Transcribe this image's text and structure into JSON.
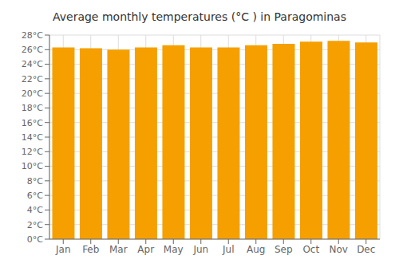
{
  "chart_data": {
    "type": "bar",
    "title": "Average monthly temperatures (°C ) in Paragominas",
    "categories": [
      "Jan",
      "Feb",
      "Mar",
      "Apr",
      "May",
      "Jun",
      "Jul",
      "Aug",
      "Sep",
      "Oct",
      "Nov",
      "Dec"
    ],
    "values": [
      26.3,
      26.2,
      26.0,
      26.3,
      26.6,
      26.3,
      26.3,
      26.6,
      26.8,
      27.1,
      27.2,
      27.0
    ],
    "color": "#F5A000",
    "ylim": [
      0,
      28
    ],
    "yticks": [
      {
        "value": 0,
        "label": "0°C"
      },
      {
        "value": 2,
        "label": "2°C"
      },
      {
        "value": 4,
        "label": "4°C"
      },
      {
        "value": 6,
        "label": "6°C"
      },
      {
        "value": 8,
        "label": "8°C"
      },
      {
        "value": 10,
        "label": "10°C"
      },
      {
        "value": 12,
        "label": "12°C"
      },
      {
        "value": 14,
        "label": "14°C"
      },
      {
        "value": 16,
        "label": "16°C"
      },
      {
        "value": 18,
        "label": "18°C"
      },
      {
        "value": 20,
        "label": "20°C"
      },
      {
        "value": 22,
        "label": "22°C"
      },
      {
        "value": 24,
        "label": "24°C"
      },
      {
        "value": 26,
        "label": "26°C"
      },
      {
        "value": 28,
        "label": "28°C"
      }
    ],
    "grid": true
  }
}
